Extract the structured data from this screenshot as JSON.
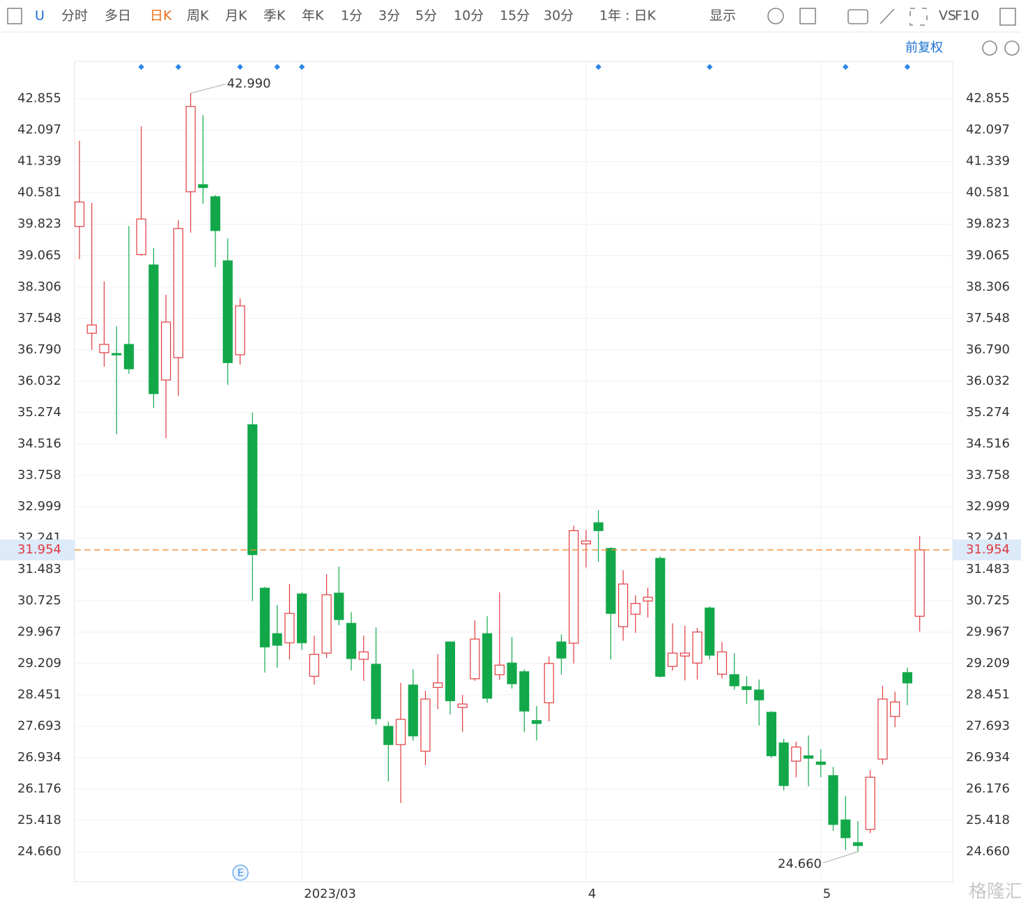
{
  "toolbar": {
    "items": [
      "U",
      "分时",
      "多日",
      "日K",
      "周K",
      "月K",
      "季K",
      "年K",
      "1分",
      "3分",
      "5分",
      "10分",
      "15分",
      "30分",
      "1年 : 日K",
      "显示",
      "VS",
      "F10"
    ],
    "adjust": "前复权"
  },
  "watermark": "格隆汇",
  "chart_data": {
    "type": "candlestick",
    "categories": [
      null,
      null,
      null,
      null,
      null,
      null,
      null,
      null,
      null,
      null,
      null,
      null,
      null,
      null,
      null,
      null,
      null,
      null,
      "2023/03",
      null,
      null,
      null,
      null,
      null,
      null,
      null,
      null,
      null,
      null,
      null,
      null,
      null,
      null,
      null,
      null,
      null,
      null,
      null,
      null,
      null,
      null,
      "4",
      null,
      null,
      null,
      null,
      null,
      null,
      null,
      null,
      null,
      null,
      null,
      null,
      null,
      null,
      null,
      null,
      null,
      null,
      "5",
      null,
      null,
      null,
      null,
      null,
      null,
      null,
      null
    ],
    "open": [
      39.77,
      37.19,
      36.72,
      36.7,
      36.92,
      39.09,
      38.84,
      36.06,
      36.6,
      40.61,
      40.78,
      40.49,
      38.94,
      36.67,
      34.98,
      31.03,
      29.93,
      29.71,
      30.89,
      28.9,
      29.46,
      30.91,
      30.18,
      29.31,
      29.19,
      27.69,
      27.25,
      28.69,
      27.09,
      28.63,
      29.73,
      28.15,
      28.84,
      29.93,
      28.94,
      29.22,
      29.01,
      27.83,
      28.26,
      29.73,
      29.7,
      32.1,
      32.61,
      31.99,
      30.1,
      30.4,
      30.72,
      31.75,
      29.14,
      29.39,
      29.22,
      30.55,
      28.95,
      28.94,
      28.65,
      28.57,
      28.03,
      27.29,
      26.85,
      26.98,
      26.83,
      26.5,
      25.43,
      24.88,
      25.2,
      26.9,
      27.93,
      28.99,
      30.35
    ],
    "high": [
      41.84,
      40.34,
      38.44,
      37.36,
      39.78,
      42.19,
      39.25,
      38.12,
      39.92,
      42.99,
      42.46,
      40.53,
      39.48,
      38.03,
      35.27,
      31.06,
      30.62,
      31.13,
      30.93,
      29.88,
      31.36,
      31.55,
      30.45,
      29.88,
      30.08,
      27.81,
      28.74,
      29.07,
      28.55,
      29.44,
      29.73,
      28.45,
      30.25,
      30.35,
      30.93,
      29.85,
      29.07,
      28.18,
      29.38,
      29.91,
      32.54,
      32.44,
      32.91,
      32.02,
      31.46,
      30.86,
      31.04,
      31.8,
      30.18,
      30.12,
      30.07,
      30.59,
      29.73,
      29.46,
      28.9,
      28.82,
      28.06,
      27.39,
      27.32,
      27.47,
      27.14,
      26.71,
      26.01,
      25.4,
      26.63,
      28.67,
      28.53,
      29.11,
      32.29
    ],
    "low": [
      38.98,
      36.79,
      36.38,
      34.75,
      36.21,
      39.06,
      35.39,
      34.65,
      35.68,
      39.62,
      40.32,
      38.79,
      35.94,
      36.43,
      30.72,
      28.99,
      29.11,
      29.31,
      29.54,
      28.7,
      29.34,
      30.13,
      29.04,
      28.79,
      27.73,
      26.36,
      25.84,
      27.34,
      26.75,
      28.11,
      27.98,
      27.56,
      28.79,
      28.26,
      28.82,
      28.6,
      27.56,
      27.35,
      27.81,
      28.94,
      29.21,
      31.53,
      31.67,
      29.31,
      29.76,
      29.95,
      30.32,
      28.87,
      29.04,
      28.8,
      28.82,
      29.31,
      28.85,
      28.58,
      28.23,
      27.71,
      26.93,
      26.14,
      26.46,
      26.24,
      26.46,
      25.17,
      24.7,
      24.66,
      25.11,
      26.77,
      27.67,
      28.2,
      29.98
    ],
    "close": [
      40.36,
      37.39,
      36.92,
      36.67,
      36.33,
      39.95,
      35.73,
      37.46,
      39.72,
      42.67,
      40.71,
      39.67,
      36.48,
      37.85,
      31.84,
      29.61,
      29.65,
      30.42,
      29.71,
      29.43,
      30.87,
      30.27,
      29.33,
      29.49,
      27.88,
      27.25,
      27.86,
      27.46,
      28.35,
      28.74,
      28.31,
      28.23,
      29.8,
      28.37,
      29.17,
      28.72,
      28.06,
      27.76,
      29.21,
      29.34,
      32.42,
      32.17,
      32.42,
      30.42,
      31.13,
      30.66,
      30.81,
      28.9,
      29.46,
      29.46,
      29.97,
      29.41,
      29.49,
      28.67,
      28.58,
      28.33,
      26.98,
      26.26,
      27.19,
      26.92,
      26.77,
      25.32,
      25.0,
      24.81,
      26.46,
      28.35,
      28.28,
      28.74,
      31.954
    ],
    "up_color": "#e0393e",
    "down_color": "#12a84a",
    "last_price": 31.954,
    "last_price_color": "#f08c2e",
    "max_label": {
      "value": 42.99,
      "label": "42.990"
    },
    "min_label": {
      "value": 24.66,
      "label": "24.660"
    },
    "ylim": [
      23.936,
      43.76
    ],
    "yticks": [
      {
        "value": 24.66,
        "label": "24.660"
      },
      25.418,
      26.176,
      26.934,
      27.693,
      28.451,
      29.209,
      29.967,
      30.725,
      31.483,
      32.241,
      32.999,
      33.758,
      34.516,
      35.274,
      36.032,
      {
        "value": 36.79,
        "label": "36.790"
      },
      37.548,
      38.306,
      39.065,
      39.823,
      40.581,
      41.339,
      42.097,
      42.855
    ],
    "grid": true
  }
}
